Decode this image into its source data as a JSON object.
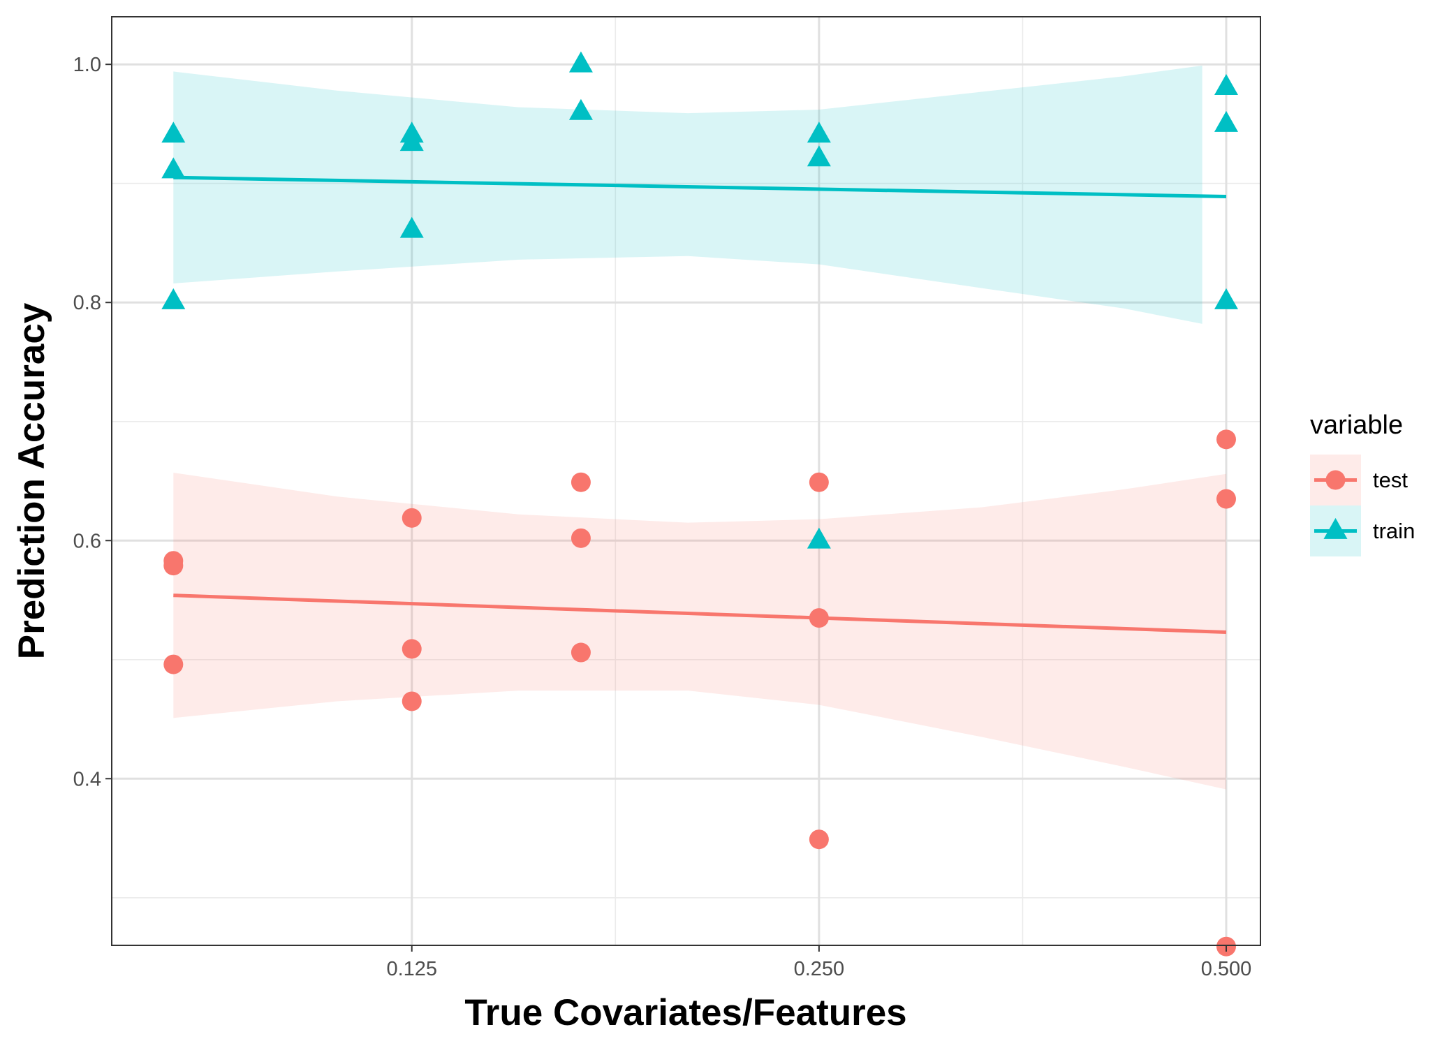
{
  "chart_data": {
    "type": "scatter",
    "xlabel": "True Covariates/Features",
    "ylabel": "Prediction Accuracy",
    "x_scale": "log2",
    "xlim": [
      0.075,
      0.53
    ],
    "ylim": [
      0.26,
      1.04
    ],
    "x_ticks": [
      0.125,
      0.25,
      0.5
    ],
    "x_tick_labels": [
      "0.125",
      "0.250",
      "0.500"
    ],
    "y_ticks": [
      0.4,
      0.6,
      0.8,
      1.0
    ],
    "y_tick_labels": [
      "0.4",
      "0.6",
      "0.8",
      "1.0"
    ],
    "grid": true,
    "legend": {
      "title": "variable",
      "position": "right"
    },
    "series": [
      {
        "name": "test",
        "color": "#F8766D",
        "marker": "circle",
        "points": [
          {
            "x": 0.0833,
            "y": 0.583
          },
          {
            "x": 0.0833,
            "y": 0.579
          },
          {
            "x": 0.0833,
            "y": 0.496
          },
          {
            "x": 0.125,
            "y": 0.619
          },
          {
            "x": 0.125,
            "y": 0.509
          },
          {
            "x": 0.125,
            "y": 0.465
          },
          {
            "x": 0.1667,
            "y": 0.649
          },
          {
            "x": 0.1667,
            "y": 0.602
          },
          {
            "x": 0.1667,
            "y": 0.506
          },
          {
            "x": 0.25,
            "y": 0.649
          },
          {
            "x": 0.25,
            "y": 0.535
          },
          {
            "x": 0.25,
            "y": 0.349
          },
          {
            "x": 0.5,
            "y": 0.685
          },
          {
            "x": 0.5,
            "y": 0.635
          },
          {
            "x": 0.5,
            "y": 0.259
          }
        ],
        "fit": [
          {
            "x": 0.0833,
            "y": 0.554
          },
          {
            "x": 0.5,
            "y": 0.523
          }
        ],
        "band": [
          {
            "x": 0.0833,
            "lo": 0.451,
            "hi": 0.657
          },
          {
            "x": 0.11,
            "lo": 0.465,
            "hi": 0.637
          },
          {
            "x": 0.15,
            "lo": 0.474,
            "hi": 0.622
          },
          {
            "x": 0.2,
            "lo": 0.474,
            "hi": 0.615
          },
          {
            "x": 0.25,
            "lo": 0.462,
            "hi": 0.618
          },
          {
            "x": 0.33,
            "lo": 0.435,
            "hi": 0.628
          },
          {
            "x": 0.42,
            "lo": 0.41,
            "hi": 0.643
          },
          {
            "x": 0.5,
            "lo": 0.391,
            "hi": 0.656
          }
        ]
      },
      {
        "name": "train",
        "color": "#00BFC4",
        "marker": "triangle",
        "points": [
          {
            "x": 0.0833,
            "y": 0.941
          },
          {
            "x": 0.0833,
            "y": 0.911
          },
          {
            "x": 0.0833,
            "y": 0.801
          },
          {
            "x": 0.125,
            "y": 0.941
          },
          {
            "x": 0.125,
            "y": 0.934
          },
          {
            "x": 0.125,
            "y": 0.861
          },
          {
            "x": 0.1667,
            "y": 1.0
          },
          {
            "x": 0.1667,
            "y": 0.96
          },
          {
            "x": 0.25,
            "y": 0.941
          },
          {
            "x": 0.25,
            "y": 0.921
          },
          {
            "x": 0.25,
            "y": 0.6
          },
          {
            "x": 0.5,
            "y": 0.981
          },
          {
            "x": 0.5,
            "y": 0.95
          },
          {
            "x": 0.5,
            "y": 0.801
          }
        ],
        "fit": [
          {
            "x": 0.0833,
            "y": 0.905
          },
          {
            "x": 0.5,
            "y": 0.889
          }
        ],
        "band": [
          {
            "x": 0.0833,
            "lo": 0.816,
            "hi": 0.994
          },
          {
            "x": 0.11,
            "lo": 0.826,
            "hi": 0.978
          },
          {
            "x": 0.15,
            "lo": 0.836,
            "hi": 0.964
          },
          {
            "x": 0.2,
            "lo": 0.839,
            "hi": 0.959
          },
          {
            "x": 0.25,
            "lo": 0.832,
            "hi": 0.962
          },
          {
            "x": 0.33,
            "lo": 0.812,
            "hi": 0.977
          },
          {
            "x": 0.42,
            "lo": 0.795,
            "hi": 0.99
          },
          {
            "x": 0.48,
            "lo": 0.782,
            "hi": 0.999
          }
        ]
      }
    ]
  }
}
